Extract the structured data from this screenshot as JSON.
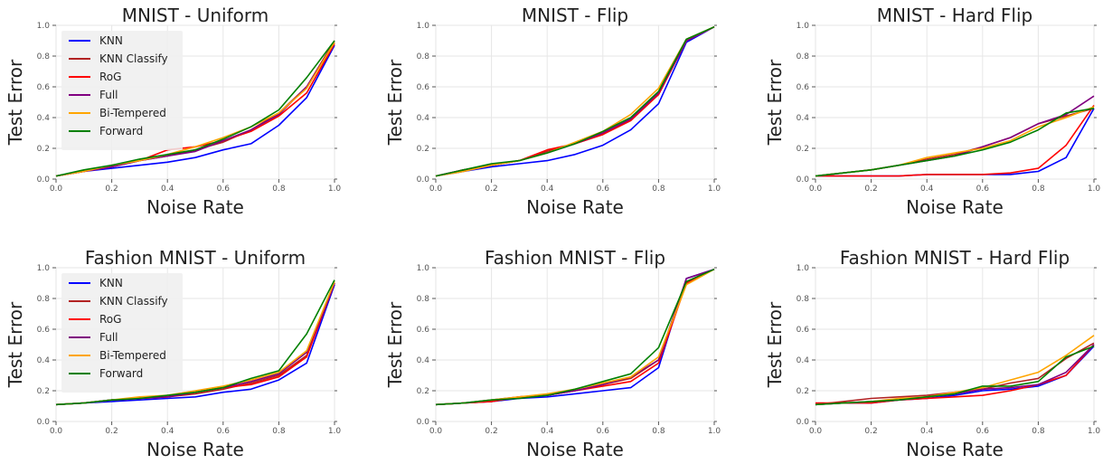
{
  "chart_data": [
    {
      "type": "line",
      "title": "MNIST - Uniform",
      "xlabel": "Noise Rate",
      "ylabel": "Test Error",
      "xlim": [
        0,
        1
      ],
      "ylim": [
        0,
        1
      ],
      "x_ticks": [
        "0.0",
        "0.2",
        "0.4",
        "0.6",
        "0.8",
        "1.0"
      ],
      "y_ticks": [
        "0.0",
        "0.2",
        "0.4",
        "0.6",
        "0.8",
        "1.0"
      ],
      "grid": true,
      "legend": "top-left",
      "x": [
        0.0,
        0.1,
        0.2,
        0.3,
        0.4,
        0.5,
        0.6,
        0.7,
        0.8,
        0.9,
        1.0
      ],
      "series": [
        {
          "name": "KNN",
          "color": "#0000ff",
          "values": [
            0.02,
            0.05,
            0.07,
            0.09,
            0.11,
            0.14,
            0.19,
            0.23,
            0.35,
            0.53,
            0.87
          ]
        },
        {
          "name": "KNN Classify",
          "color": "#b22222",
          "values": [
            0.02,
            0.05,
            0.08,
            0.12,
            0.15,
            0.19,
            0.24,
            0.32,
            0.43,
            0.6,
            0.9
          ]
        },
        {
          "name": "RoG",
          "color": "#ff0000",
          "values": [
            0.02,
            0.05,
            0.08,
            0.12,
            0.19,
            0.21,
            0.25,
            0.31,
            0.41,
            0.56,
            0.88
          ]
        },
        {
          "name": "Full",
          "color": "#800080",
          "values": [
            0.02,
            0.05,
            0.08,
            0.12,
            0.15,
            0.18,
            0.25,
            0.32,
            0.42,
            0.6,
            0.89
          ]
        },
        {
          "name": "Bi-Tempered",
          "color": "#ffa500",
          "values": [
            0.02,
            0.05,
            0.09,
            0.12,
            0.16,
            0.21,
            0.27,
            0.34,
            0.43,
            0.59,
            0.89
          ]
        },
        {
          "name": "Forward",
          "color": "#008000",
          "values": [
            0.02,
            0.06,
            0.09,
            0.13,
            0.16,
            0.19,
            0.26,
            0.34,
            0.45,
            0.66,
            0.9
          ]
        }
      ]
    },
    {
      "type": "line",
      "title": "MNIST - Flip",
      "xlabel": "Noise Rate",
      "ylabel": "Test Error",
      "xlim": [
        0,
        1
      ],
      "ylim": [
        0,
        1
      ],
      "x_ticks": [
        "0.0",
        "0.2",
        "0.4",
        "0.6",
        "0.8",
        "1.0"
      ],
      "y_ticks": [
        "0.0",
        "0.2",
        "0.4",
        "0.6",
        "0.8",
        "1.0"
      ],
      "grid": true,
      "legend": "",
      "x": [
        0.0,
        0.1,
        0.2,
        0.3,
        0.4,
        0.5,
        0.6,
        0.7,
        0.8,
        0.9,
        1.0
      ],
      "series": [
        {
          "name": "KNN",
          "color": "#0000ff",
          "values": [
            0.02,
            0.05,
            0.08,
            0.1,
            0.12,
            0.16,
            0.22,
            0.32,
            0.49,
            0.89,
            0.99
          ]
        },
        {
          "name": "KNN Classify",
          "color": "#b22222",
          "values": [
            0.02,
            0.06,
            0.09,
            0.12,
            0.18,
            0.23,
            0.29,
            0.39,
            0.55,
            0.9,
            0.99
          ]
        },
        {
          "name": "RoG",
          "color": "#ff0000",
          "values": [
            0.02,
            0.06,
            0.09,
            0.12,
            0.19,
            0.23,
            0.29,
            0.38,
            0.55,
            0.9,
            0.99
          ]
        },
        {
          "name": "Full",
          "color": "#800080",
          "values": [
            0.02,
            0.06,
            0.09,
            0.12,
            0.17,
            0.23,
            0.3,
            0.39,
            0.56,
            0.9,
            0.99
          ]
        },
        {
          "name": "Bi-Tempered",
          "color": "#ffa500",
          "values": [
            0.02,
            0.05,
            0.09,
            0.12,
            0.17,
            0.24,
            0.31,
            0.42,
            0.59,
            0.91,
            0.99
          ]
        },
        {
          "name": "Forward",
          "color": "#008000",
          "values": [
            0.02,
            0.06,
            0.1,
            0.12,
            0.17,
            0.23,
            0.31,
            0.4,
            0.57,
            0.91,
            0.99
          ]
        }
      ]
    },
    {
      "type": "line",
      "title": "MNIST - Hard Flip",
      "xlabel": "Noise Rate",
      "ylabel": "Test Error",
      "xlim": [
        0,
        1
      ],
      "ylim": [
        0,
        1
      ],
      "x_ticks": [
        "0.0",
        "0.2",
        "0.4",
        "0.6",
        "0.8",
        "1.0"
      ],
      "y_ticks": [
        "0.0",
        "0.2",
        "0.4",
        "0.6",
        "0.8",
        "1.0"
      ],
      "grid": true,
      "legend": "",
      "x": [
        0.0,
        0.1,
        0.2,
        0.3,
        0.4,
        0.5,
        0.6,
        0.7,
        0.8,
        0.9,
        1.0
      ],
      "series": [
        {
          "name": "KNN",
          "color": "#0000ff",
          "values": [
            0.02,
            0.02,
            0.02,
            0.02,
            0.03,
            0.03,
            0.03,
            0.03,
            0.05,
            0.14,
            0.46
          ]
        },
        {
          "name": "KNN Classify",
          "color": "#b22222",
          "values": [
            0.02,
            0.04,
            0.06,
            0.09,
            0.13,
            0.16,
            0.21,
            0.27,
            0.36,
            0.41,
            0.46
          ]
        },
        {
          "name": "RoG",
          "color": "#ff0000",
          "values": [
            0.02,
            0.02,
            0.02,
            0.02,
            0.03,
            0.03,
            0.03,
            0.04,
            0.07,
            0.22,
            0.48
          ]
        },
        {
          "name": "Full",
          "color": "#800080",
          "values": [
            0.02,
            0.04,
            0.06,
            0.09,
            0.12,
            0.15,
            0.21,
            0.27,
            0.36,
            0.42,
            0.54
          ]
        },
        {
          "name": "Bi-Tempered",
          "color": "#ffa500",
          "values": [
            0.02,
            0.04,
            0.06,
            0.09,
            0.14,
            0.17,
            0.2,
            0.25,
            0.34,
            0.4,
            0.47
          ]
        },
        {
          "name": "Forward",
          "color": "#008000",
          "values": [
            0.02,
            0.04,
            0.06,
            0.09,
            0.12,
            0.15,
            0.19,
            0.24,
            0.32,
            0.43,
            0.46
          ]
        }
      ]
    },
    {
      "type": "line",
      "title": "Fashion MNIST - Uniform",
      "xlabel": "Noise Rate",
      "ylabel": "Test Error",
      "xlim": [
        0,
        1
      ],
      "ylim": [
        0,
        1
      ],
      "x_ticks": [
        "0.0",
        "0.2",
        "0.4",
        "0.6",
        "0.8",
        "1.0"
      ],
      "y_ticks": [
        "0.0",
        "0.2",
        "0.4",
        "0.6",
        "0.8",
        "1.0"
      ],
      "grid": true,
      "legend": "top-left",
      "x": [
        0.0,
        0.1,
        0.2,
        0.3,
        0.4,
        0.5,
        0.6,
        0.7,
        0.8,
        0.9,
        1.0
      ],
      "series": [
        {
          "name": "KNN",
          "color": "#0000ff",
          "values": [
            0.11,
            0.12,
            0.13,
            0.14,
            0.15,
            0.16,
            0.19,
            0.21,
            0.27,
            0.38,
            0.89
          ]
        },
        {
          "name": "KNN Classify",
          "color": "#b22222",
          "values": [
            0.11,
            0.12,
            0.14,
            0.15,
            0.16,
            0.18,
            0.21,
            0.25,
            0.3,
            0.43,
            0.9
          ]
        },
        {
          "name": "RoG",
          "color": "#ff0000",
          "values": [
            0.11,
            0.12,
            0.14,
            0.15,
            0.16,
            0.19,
            0.22,
            0.24,
            0.29,
            0.42,
            0.9
          ]
        },
        {
          "name": "Full",
          "color": "#800080",
          "values": [
            0.11,
            0.12,
            0.14,
            0.15,
            0.16,
            0.19,
            0.22,
            0.26,
            0.31,
            0.45,
            0.9
          ]
        },
        {
          "name": "Bi-Tempered",
          "color": "#ffa500",
          "values": [
            0.11,
            0.12,
            0.14,
            0.16,
            0.17,
            0.2,
            0.23,
            0.27,
            0.32,
            0.46,
            0.91
          ]
        },
        {
          "name": "Forward",
          "color": "#008000",
          "values": [
            0.11,
            0.12,
            0.14,
            0.15,
            0.17,
            0.19,
            0.22,
            0.28,
            0.33,
            0.57,
            0.92
          ]
        }
      ]
    },
    {
      "type": "line",
      "title": "Fashion MNIST - Flip",
      "xlabel": "Noise Rate",
      "ylabel": "Test Error",
      "xlim": [
        0,
        1
      ],
      "ylim": [
        0,
        1
      ],
      "x_ticks": [
        "0.0",
        "0.2",
        "0.4",
        "0.6",
        "0.8",
        "1.0"
      ],
      "y_ticks": [
        "0.0",
        "0.2",
        "0.4",
        "0.6",
        "0.8",
        "1.0"
      ],
      "grid": true,
      "legend": "",
      "x": [
        0.0,
        0.1,
        0.2,
        0.3,
        0.4,
        0.5,
        0.6,
        0.7,
        0.8,
        0.9,
        1.0
      ],
      "series": [
        {
          "name": "KNN",
          "color": "#0000ff",
          "values": [
            0.11,
            0.12,
            0.13,
            0.15,
            0.16,
            0.18,
            0.2,
            0.22,
            0.35,
            0.93,
            0.99
          ]
        },
        {
          "name": "KNN Classify",
          "color": "#b22222",
          "values": [
            0.11,
            0.12,
            0.13,
            0.16,
            0.17,
            0.2,
            0.24,
            0.28,
            0.4,
            0.91,
            0.99
          ]
        },
        {
          "name": "RoG",
          "color": "#ff0000",
          "values": [
            0.11,
            0.12,
            0.13,
            0.16,
            0.17,
            0.2,
            0.23,
            0.26,
            0.38,
            0.9,
            0.99
          ]
        },
        {
          "name": "Full",
          "color": "#800080",
          "values": [
            0.11,
            0.12,
            0.14,
            0.16,
            0.17,
            0.2,
            0.24,
            0.29,
            0.4,
            0.93,
            0.99
          ]
        },
        {
          "name": "Bi-Tempered",
          "color": "#ffa500",
          "values": [
            0.11,
            0.12,
            0.14,
            0.16,
            0.18,
            0.21,
            0.25,
            0.29,
            0.42,
            0.89,
            0.99
          ]
        },
        {
          "name": "Forward",
          "color": "#008000",
          "values": [
            0.11,
            0.12,
            0.14,
            0.15,
            0.17,
            0.21,
            0.26,
            0.31,
            0.48,
            0.91,
            0.99
          ]
        }
      ]
    },
    {
      "type": "line",
      "title": "Fashion MNIST - Hard Flip",
      "xlabel": "Noise Rate",
      "ylabel": "Test Error",
      "xlim": [
        0,
        1
      ],
      "ylim": [
        0,
        1
      ],
      "x_ticks": [
        "0.0",
        "0.2",
        "0.4",
        "0.6",
        "0.8",
        "1.0"
      ],
      "y_ticks": [
        "0.0",
        "0.2",
        "0.4",
        "0.6",
        "0.8",
        "1.0"
      ],
      "grid": true,
      "legend": "",
      "x": [
        0.0,
        0.1,
        0.2,
        0.3,
        0.4,
        0.5,
        0.6,
        0.7,
        0.8,
        0.9,
        1.0
      ],
      "series": [
        {
          "name": "KNN",
          "color": "#0000ff",
          "values": [
            0.11,
            0.12,
            0.12,
            0.14,
            0.15,
            0.17,
            0.2,
            0.21,
            0.23,
            0.3,
            0.49
          ]
        },
        {
          "name": "KNN Classify",
          "color": "#b22222",
          "values": [
            0.11,
            0.13,
            0.15,
            0.16,
            0.17,
            0.19,
            0.21,
            0.25,
            0.28,
            0.41,
            0.51
          ]
        },
        {
          "name": "RoG",
          "color": "#ff0000",
          "values": [
            0.12,
            0.12,
            0.12,
            0.14,
            0.15,
            0.16,
            0.17,
            0.2,
            0.24,
            0.3,
            0.5
          ]
        },
        {
          "name": "Full",
          "color": "#800080",
          "values": [
            0.11,
            0.12,
            0.13,
            0.14,
            0.16,
            0.18,
            0.21,
            0.22,
            0.24,
            0.32,
            0.5
          ]
        },
        {
          "name": "Bi-Tempered",
          "color": "#ffa500",
          "values": [
            0.11,
            0.12,
            0.13,
            0.15,
            0.16,
            0.19,
            0.22,
            0.27,
            0.32,
            0.43,
            0.56
          ]
        },
        {
          "name": "Forward",
          "color": "#008000",
          "values": [
            0.11,
            0.12,
            0.13,
            0.14,
            0.16,
            0.18,
            0.23,
            0.23,
            0.26,
            0.42,
            0.49
          ]
        }
      ]
    }
  ]
}
